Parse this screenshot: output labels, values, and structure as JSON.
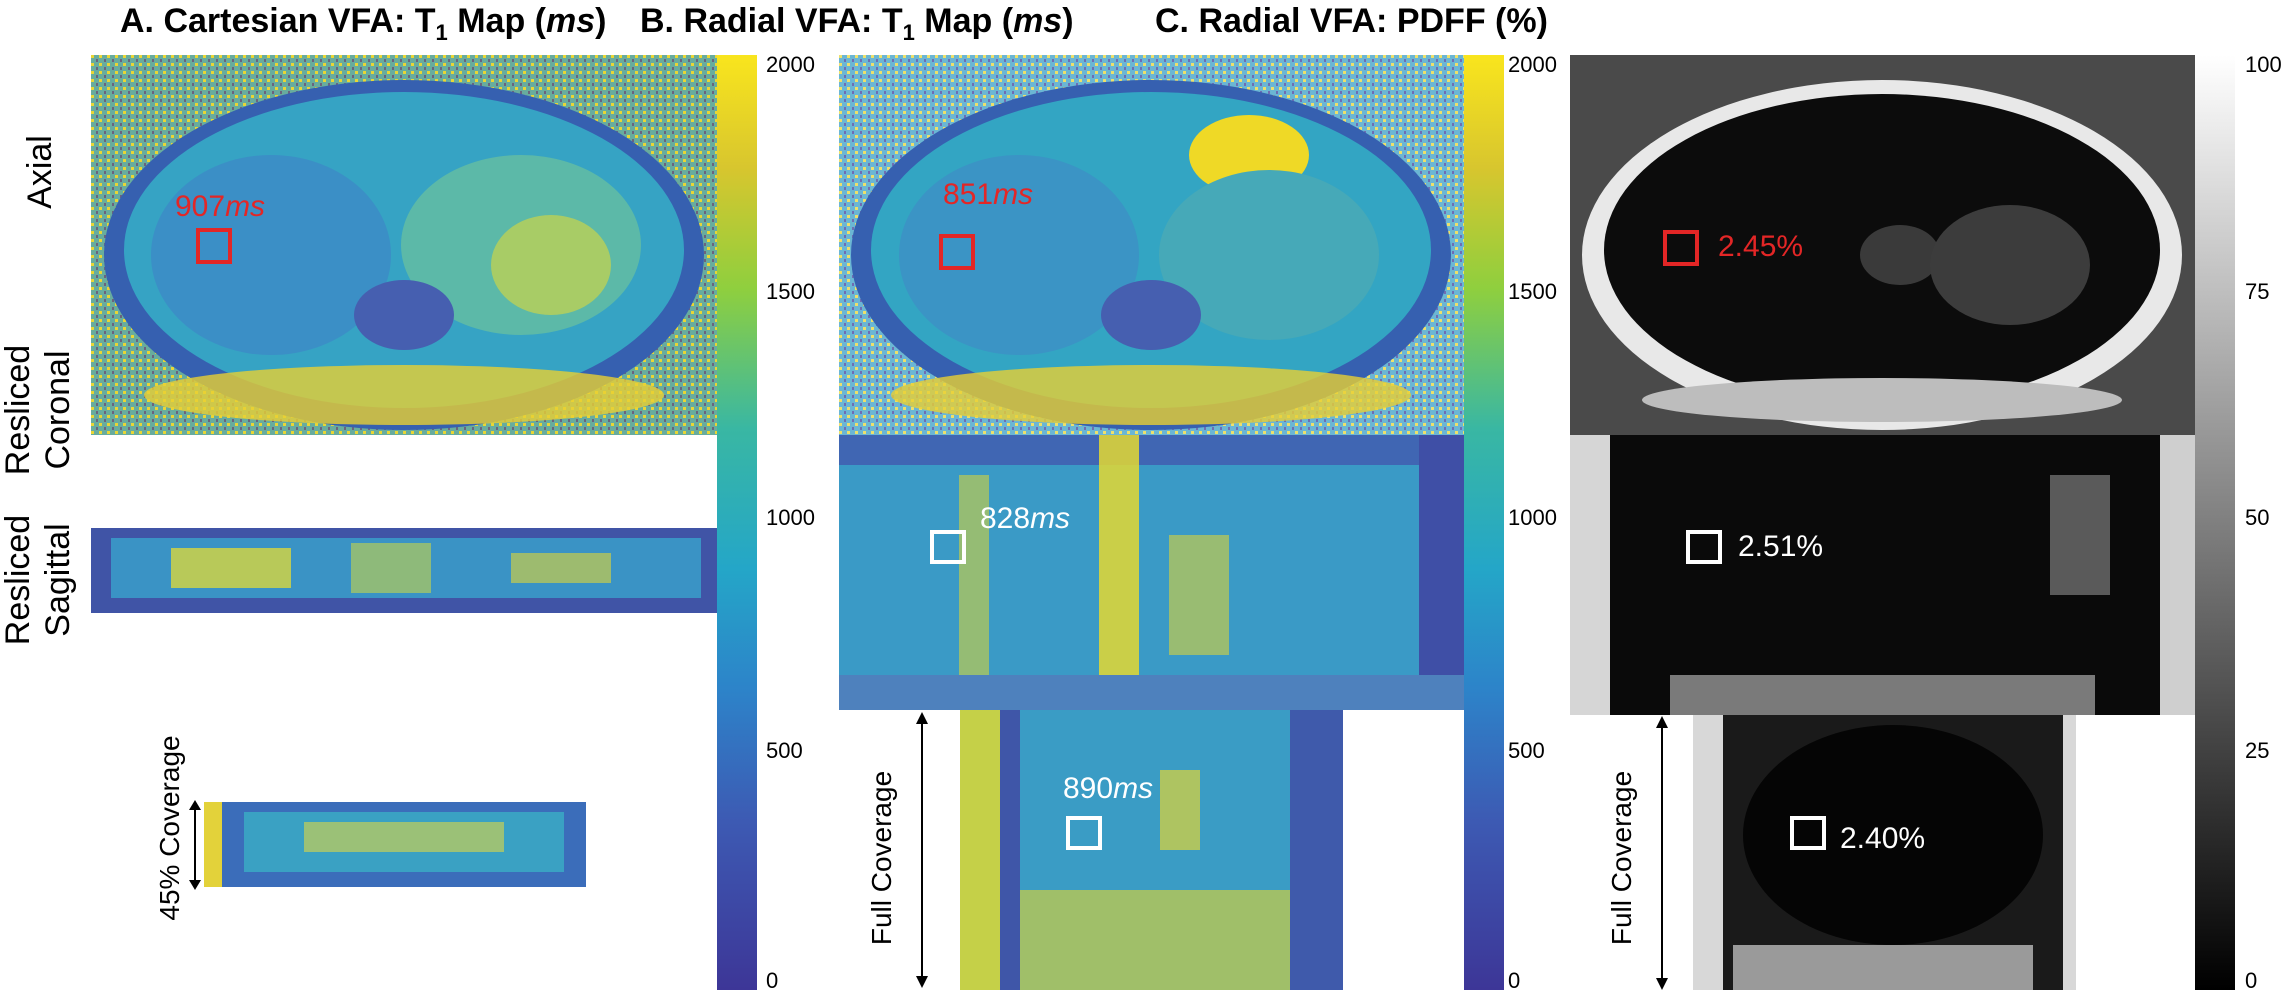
{
  "panels": {
    "a": {
      "title_pre": "A. Cartesian VFA: T",
      "title_sub": "1",
      "title_mid": " Map (",
      "title_unit": "ms",
      "title_post": ")"
    },
    "b": {
      "title_pre": "B. Radial VFA: T",
      "title_sub": "1",
      "title_mid": " Map (",
      "title_unit": "ms",
      "title_post": ")"
    },
    "c": {
      "title": "C. Radial VFA: PDFF (%)"
    }
  },
  "rows": {
    "axial": "Axial",
    "coronal_line1": "Resliced",
    "coronal_line2": "Coronal",
    "sagittal_line1": "Resliced",
    "sagittal_line2": "Sagittal"
  },
  "coverage": {
    "a": "45% Coverage",
    "b": "Full Coverage",
    "c": "Full Coverage"
  },
  "roi_values": {
    "a_axial": {
      "num": "907",
      "unit": "ms"
    },
    "b_axial": {
      "num": "851",
      "unit": "ms"
    },
    "b_coronal": {
      "num": "828",
      "unit": "ms"
    },
    "b_sagittal": {
      "num": "890",
      "unit": "ms"
    },
    "c_axial": "2.45%",
    "c_coronal": "2.51%",
    "c_sagittal": "2.40%"
  },
  "colorbars": {
    "t1_ticks": [
      "2000",
      "1500",
      "1000",
      "500",
      "0"
    ],
    "pdff_ticks": [
      "100",
      "75",
      "50",
      "25",
      "0"
    ]
  },
  "colors": {
    "roi_red": "#e32626",
    "roi_white": "#ffffff",
    "viridis_low": "#440a84",
    "viridis_high": "#f9e51d"
  }
}
